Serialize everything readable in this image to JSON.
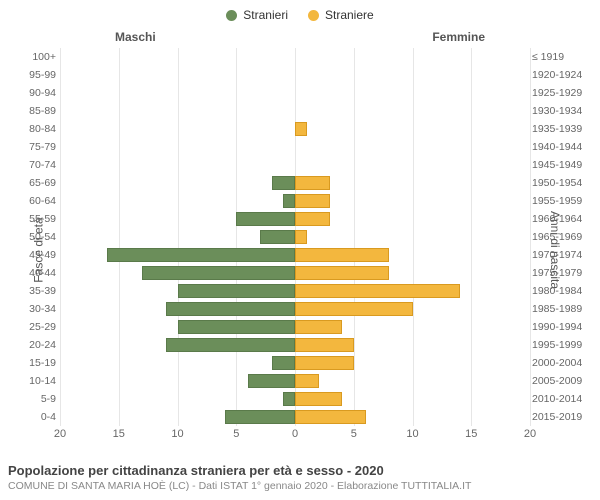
{
  "legend": {
    "male": {
      "label": "Stranieri",
      "color": "#6b8e5a"
    },
    "female": {
      "label": "Straniere",
      "color": "#f3b73e"
    }
  },
  "side_titles": {
    "left": "Maschi",
    "right": "Femmine"
  },
  "axis": {
    "left_title": "Fasce di età",
    "right_title": "Anni di nascita",
    "x_ticks": [
      20,
      15,
      10,
      5,
      0,
      5,
      10,
      15,
      20
    ],
    "x_extent": 20
  },
  "colors": {
    "male_fill": "#6b8e5a",
    "male_border": "#5a7a4a",
    "female_fill": "#f3b73e",
    "female_border": "#d99a20",
    "grid": "#e6e6e6",
    "center_dash": "#7a7a5a",
    "bg": "#ffffff"
  },
  "rows": [
    {
      "age": "100+",
      "birth": "≤ 1919",
      "m": 0,
      "f": 0
    },
    {
      "age": "95-99",
      "birth": "1920-1924",
      "m": 0,
      "f": 0
    },
    {
      "age": "90-94",
      "birth": "1925-1929",
      "m": 0,
      "f": 0
    },
    {
      "age": "85-89",
      "birth": "1930-1934",
      "m": 0,
      "f": 0
    },
    {
      "age": "80-84",
      "birth": "1935-1939",
      "m": 0,
      "f": 1
    },
    {
      "age": "75-79",
      "birth": "1940-1944",
      "m": 0,
      "f": 0
    },
    {
      "age": "70-74",
      "birth": "1945-1949",
      "m": 0,
      "f": 0
    },
    {
      "age": "65-69",
      "birth": "1950-1954",
      "m": 2,
      "f": 3
    },
    {
      "age": "60-64",
      "birth": "1955-1959",
      "m": 1,
      "f": 3
    },
    {
      "age": "55-59",
      "birth": "1960-1964",
      "m": 5,
      "f": 3
    },
    {
      "age": "50-54",
      "birth": "1965-1969",
      "m": 3,
      "f": 1
    },
    {
      "age": "45-49",
      "birth": "1970-1974",
      "m": 16,
      "f": 8
    },
    {
      "age": "40-44",
      "birth": "1975-1979",
      "m": 13,
      "f": 8
    },
    {
      "age": "35-39",
      "birth": "1980-1984",
      "m": 10,
      "f": 14
    },
    {
      "age": "30-34",
      "birth": "1985-1989",
      "m": 11,
      "f": 10
    },
    {
      "age": "25-29",
      "birth": "1990-1994",
      "m": 10,
      "f": 4
    },
    {
      "age": "20-24",
      "birth": "1995-1999",
      "m": 11,
      "f": 5
    },
    {
      "age": "15-19",
      "birth": "2000-2004",
      "m": 2,
      "f": 5
    },
    {
      "age": "10-14",
      "birth": "2005-2009",
      "m": 4,
      "f": 2
    },
    {
      "age": "5-9",
      "birth": "2010-2014",
      "m": 1,
      "f": 4
    },
    {
      "age": "0-4",
      "birth": "2015-2019",
      "m": 6,
      "f": 6
    }
  ],
  "footer": {
    "title": "Popolazione per cittadinanza straniera per età e sesso - 2020",
    "subtitle": "COMUNE DI SANTA MARIA HOÈ (LC) - Dati ISTAT 1° gennaio 2020 - Elaborazione TUTTITALIA.IT"
  }
}
